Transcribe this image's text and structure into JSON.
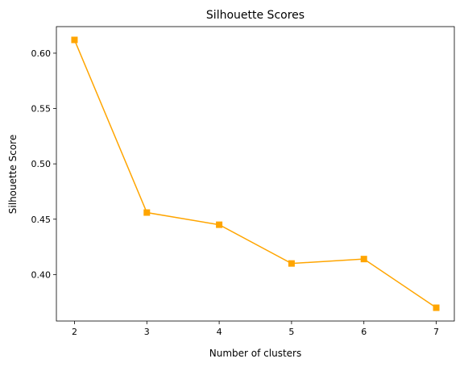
{
  "chart_data": {
    "type": "line",
    "title": "Silhouette Scores",
    "xlabel": "Number of clusters",
    "ylabel": "Silhouette Score",
    "x": [
      2,
      3,
      4,
      5,
      6,
      7
    ],
    "series": [
      {
        "values": [
          0.612,
          0.456,
          0.445,
          0.41,
          0.414,
          0.37
        ]
      }
    ],
    "xticks": [
      2,
      3,
      4,
      5,
      6,
      7
    ],
    "yticks": [
      0.4,
      0.45,
      0.5,
      0.55,
      0.6
    ],
    "xtick_labels": [
      "2",
      "3",
      "4",
      "5",
      "6",
      "7"
    ],
    "ytick_labels": [
      "0.40",
      "0.45",
      "0.50",
      "0.55",
      "0.60"
    ],
    "xlim": [
      1.75,
      7.25
    ],
    "ylim": [
      0.358,
      0.624
    ],
    "marker": "square",
    "color": "#FFA500",
    "grid": false,
    "legend": "none"
  }
}
